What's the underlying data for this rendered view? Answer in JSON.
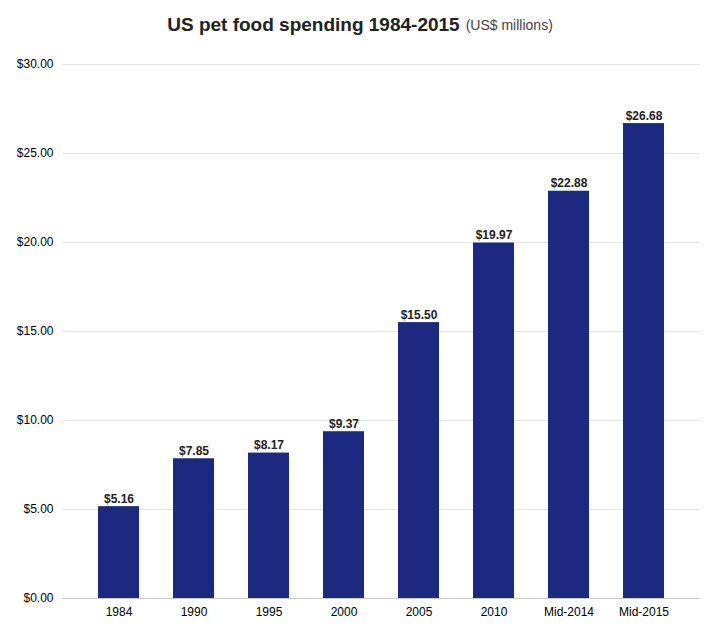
{
  "chart_data": {
    "type": "bar",
    "title": "US pet food spending 1984-2015",
    "subtitle": "(US$ millions)",
    "categories": [
      "1984",
      "1990",
      "1995",
      "2000",
      "2005",
      "2010",
      "Mid-2014",
      "Mid-2015"
    ],
    "values": [
      5.16,
      7.85,
      8.17,
      9.37,
      15.5,
      19.97,
      22.88,
      26.68
    ],
    "value_labels": [
      "$5.16",
      "$7.85",
      "$8.17",
      "$9.37",
      "$15.50",
      "$19.97",
      "$22.88",
      "$26.68"
    ],
    "data_labels": true,
    "color": "#1b2a80",
    "ylim": [
      0,
      30
    ],
    "yticks": [
      {
        "value": 0,
        "label": "$0.00"
      },
      {
        "value": 5,
        "label": "$5.00"
      },
      {
        "value": 10,
        "label": "$10.00"
      },
      {
        "value": 15,
        "label": "$15.00"
      },
      {
        "value": 20,
        "label": "$20.00"
      },
      {
        "value": 25,
        "label": "$25.00"
      },
      {
        "value": 30,
        "label": "$30.00"
      }
    ],
    "grid": true
  }
}
